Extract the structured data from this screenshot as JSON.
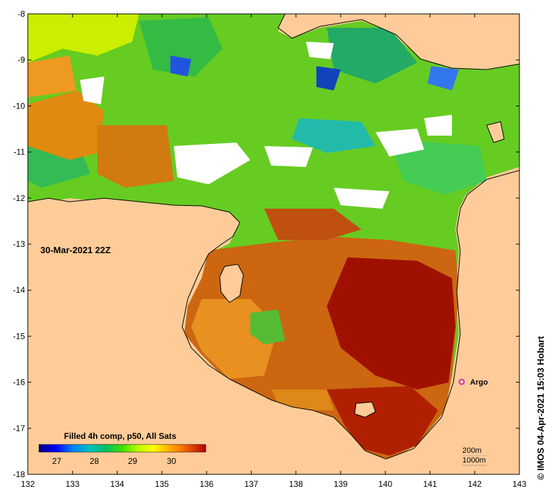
{
  "map": {
    "background_color": "#ffcc99",
    "timestamp_label": "30-Mar-2021 22Z",
    "x_ticks": [
      "132",
      "133",
      "134",
      "135",
      "136",
      "137",
      "138",
      "139",
      "140",
      "141",
      "142",
      "143"
    ],
    "y_ticks": [
      "-8",
      "-9",
      "-10",
      "-11",
      "-12",
      "-13",
      "-14",
      "-15",
      "-16",
      "-17",
      "-18"
    ],
    "argo": {
      "label": "Argo",
      "color": "#cc33cc"
    },
    "legend": {
      "title": "Filled 4h comp, p50, All Sats",
      "ticks": [
        "27",
        "28",
        "29",
        "30"
      ],
      "colors": [
        "#000080",
        "#0000ff",
        "#0080ff",
        "#00c0c0",
        "#00c060",
        "#40e000",
        "#c0ff00",
        "#ffff00",
        "#ffc000",
        "#ff8000",
        "#e04000",
        "#b00000"
      ]
    },
    "scale": {
      "line1": "200m",
      "line2": "1000m"
    },
    "credit": "© IMOS 04-Apr-2021 15:03 Hobart"
  }
}
